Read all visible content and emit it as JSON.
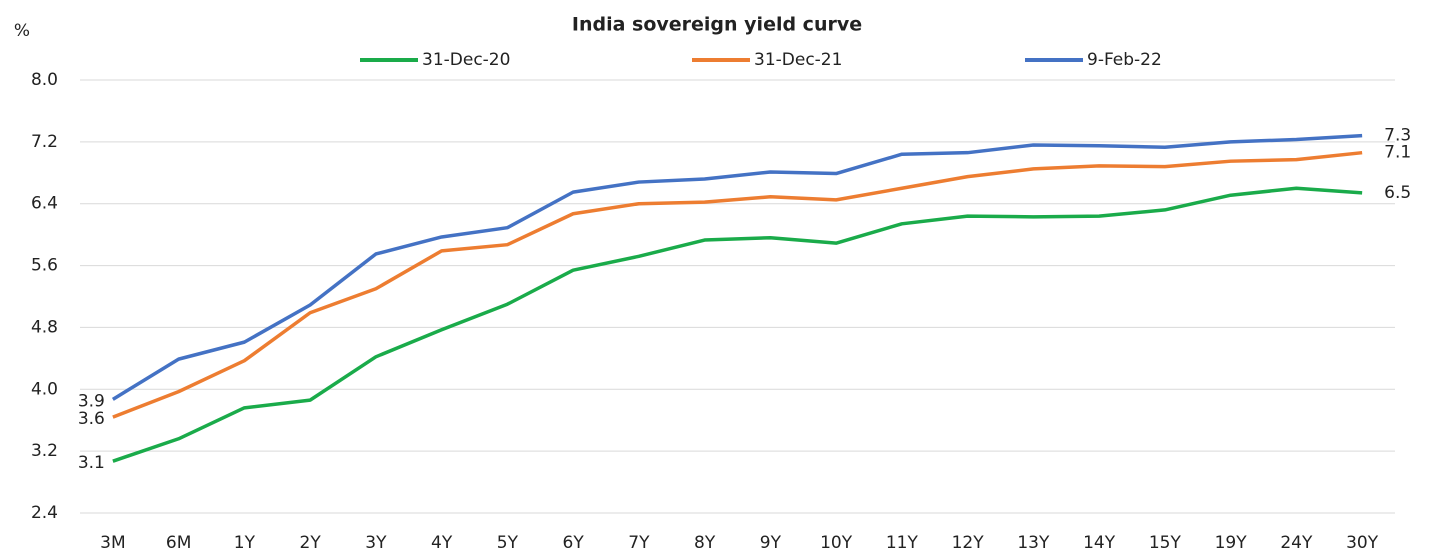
{
  "chart_data": {
    "type": "line",
    "title": "India sovereign yield curve",
    "y_label": "%",
    "categories": [
      "3M",
      "6M",
      "1Y",
      "2Y",
      "3Y",
      "4Y",
      "5Y",
      "6Y",
      "7Y",
      "8Y",
      "9Y",
      "10Y",
      "11Y",
      "12Y",
      "13Y",
      "14Y",
      "15Y",
      "19Y",
      "24Y",
      "30Y"
    ],
    "series": [
      {
        "name": "31-Dec-20",
        "color": "#1aab4a",
        "values": [
          3.07,
          3.36,
          3.76,
          3.86,
          4.42,
          4.77,
          5.1,
          5.54,
          5.72,
          5.93,
          5.96,
          5.89,
          6.14,
          6.24,
          6.23,
          6.24,
          6.32,
          6.51,
          6.6,
          6.54
        ],
        "value_labels": [
          "3.1",
          null,
          null,
          null,
          null,
          null,
          null,
          null,
          null,
          null,
          null,
          null,
          null,
          null,
          null,
          null,
          null,
          null,
          null,
          "6.5"
        ]
      },
      {
        "name": "31-Dec-21",
        "color": "#ed7d31",
        "values": [
          3.64,
          3.97,
          4.37,
          4.99,
          5.3,
          5.79,
          5.87,
          6.27,
          6.4,
          6.42,
          6.49,
          6.45,
          6.6,
          6.75,
          6.85,
          6.89,
          6.88,
          6.95,
          6.97,
          7.06
        ],
        "value_labels": [
          "3.6",
          null,
          null,
          null,
          null,
          null,
          null,
          null,
          null,
          null,
          null,
          null,
          null,
          null,
          null,
          null,
          null,
          null,
          null,
          "7.1"
        ]
      },
      {
        "name": "9-Feb-22",
        "color": "#4472c4",
        "values": [
          3.87,
          4.39,
          4.61,
          5.09,
          5.75,
          5.97,
          6.09,
          6.55,
          6.68,
          6.72,
          6.81,
          6.79,
          7.04,
          7.06,
          7.16,
          7.15,
          7.13,
          7.2,
          7.23,
          7.28
        ],
        "value_labels": [
          "3.9",
          null,
          null,
          null,
          null,
          null,
          null,
          null,
          null,
          null,
          null,
          null,
          null,
          null,
          null,
          null,
          null,
          null,
          null,
          "7.3"
        ]
      }
    ],
    "ylim": [
      2.4,
      8.0
    ],
    "yticks": [
      2.4,
      3.2,
      {
        "value": 4,
        "label": "4.0"
      },
      4.8,
      5.6,
      6.4,
      7.2,
      {
        "value": 8,
        "label": "8.0"
      }
    ],
    "grid": true,
    "legend": "top"
  }
}
